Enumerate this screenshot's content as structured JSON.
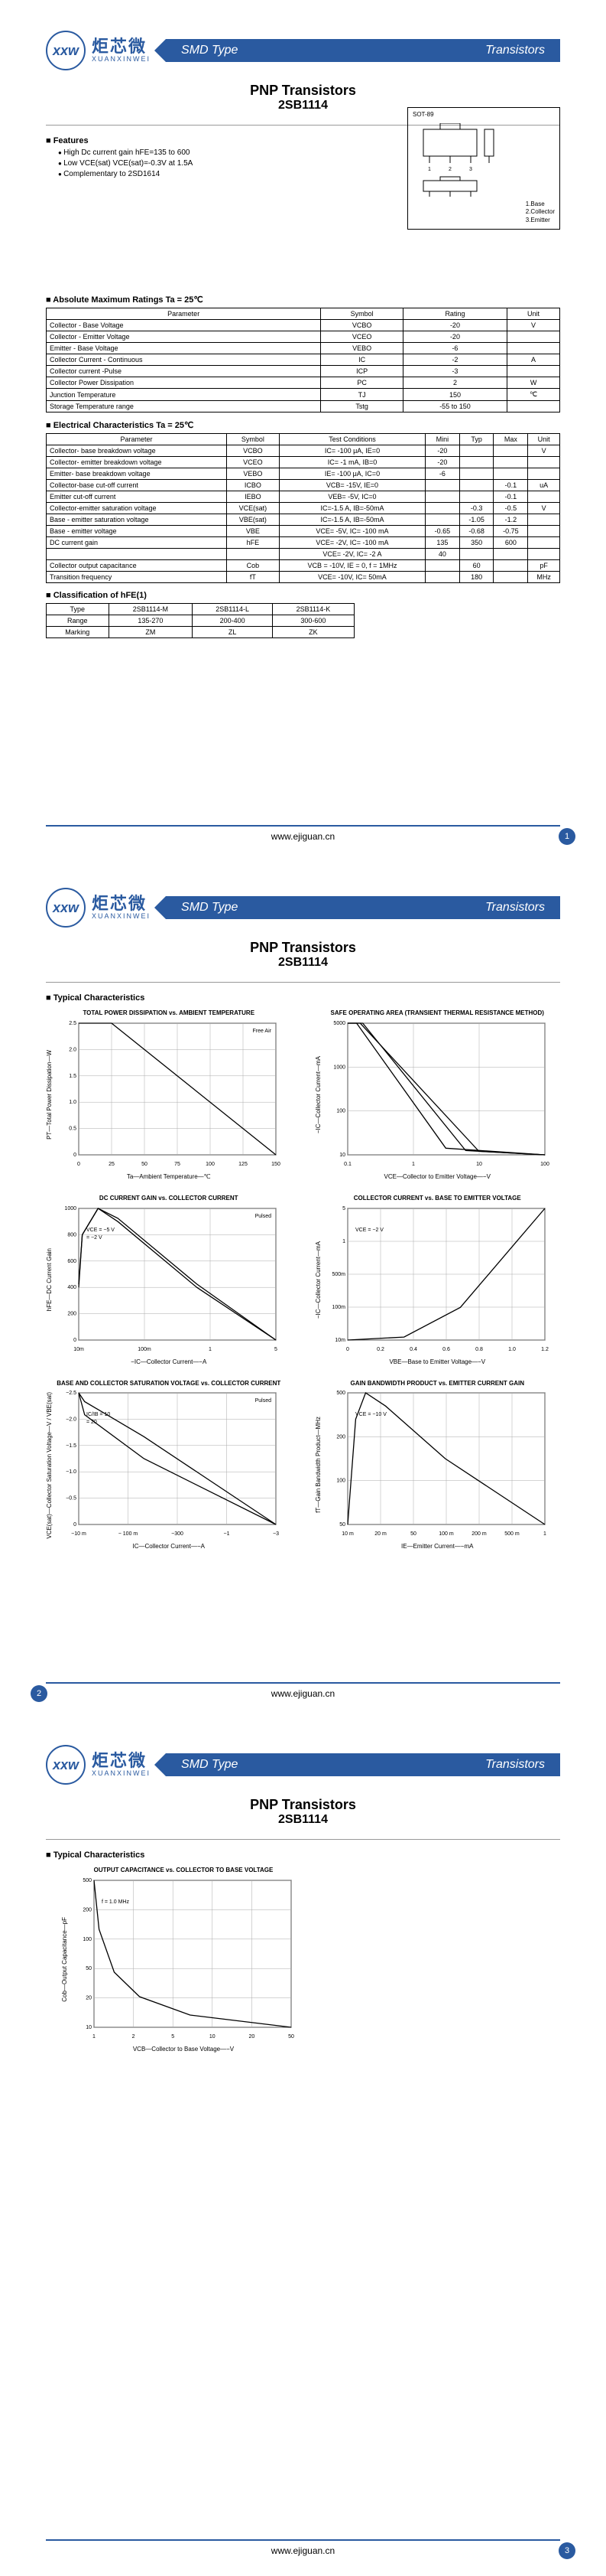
{
  "brand": {
    "logo_text": "xxw",
    "cn": "炬芯微",
    "en": "XUANXINWEI"
  },
  "banner": {
    "left": "SMD Type",
    "right": "Transistors"
  },
  "title": {
    "line1": "PNP  Transistors",
    "line2": "2SB1114"
  },
  "features": {
    "heading": "Features",
    "items": [
      "High Dc current gain hFE=135 to 600",
      "Low VCE(sat) VCE(sat)=-0.3V at 1.5A",
      "Complementary to 2SD1614"
    ]
  },
  "package": {
    "code": "SOT-89",
    "pins": [
      "1.Base",
      "2.Collector",
      "3.Emitter"
    ]
  },
  "abs_max": {
    "heading": "Absolute Maximum Ratings Ta = 25℃",
    "cols": [
      "Parameter",
      "Symbol",
      "Rating",
      "Unit"
    ],
    "rows": [
      [
        "Collector - Base Voltage",
        "VCBO",
        "-20",
        "V"
      ],
      [
        "Collector - Emitter Voltage",
        "VCEO",
        "-20",
        ""
      ],
      [
        "Emitter - Base Voltage",
        "VEBO",
        "-6",
        ""
      ],
      [
        "Collector Current - Continuous",
        "IC",
        "-2",
        "A"
      ],
      [
        "Collector current -Pulse",
        "ICP",
        "-3",
        ""
      ],
      [
        "Collector Power Dissipation",
        "PC",
        "2",
        "W"
      ],
      [
        "Junction Temperature",
        "TJ",
        "150",
        "℃"
      ],
      [
        "Storage Temperature range",
        "Tstg",
        "-55 to 150",
        ""
      ]
    ]
  },
  "elec": {
    "heading": "Electrical Characteristics Ta = 25℃",
    "cols": [
      "Parameter",
      "Symbol",
      "Test Conditions",
      "Mini",
      "Typ",
      "Max",
      "Unit"
    ],
    "rows": [
      [
        "Collector- base breakdown voltage",
        "VCBO",
        "IC= -100 μA,  IE=0",
        "-20",
        "",
        "",
        "V"
      ],
      [
        "Collector- emitter breakdown voltage",
        "VCEO",
        "IC= -1 mA,  IB=0",
        "-20",
        "",
        "",
        ""
      ],
      [
        "Emitter- base breakdown voltage",
        "VEBO",
        "IE= -100 μA,  IC=0",
        "-6",
        "",
        "",
        ""
      ],
      [
        "Collector-base cut-off current",
        "ICBO",
        "VCB= -15V,  IE=0",
        "",
        "",
        "-0.1",
        "uA"
      ],
      [
        "Emitter cut-off current",
        "IEBO",
        "VEB= -5V,  IC=0",
        "",
        "",
        "-0.1",
        ""
      ],
      [
        "Collector-emitter saturation voltage",
        "VCE(sat)",
        "IC=-1.5 A, IB=-50mA",
        "",
        "-0.3",
        "-0.5",
        "V"
      ],
      [
        "Base - emitter saturation voltage",
        "VBE(sat)",
        "IC=-1.5 A, IB=-50mA",
        "",
        "-1.05",
        "-1.2",
        ""
      ],
      [
        "Base - emitter  voltage",
        "VBE",
        "VCE= -5V, IC= -100 mA",
        "-0.65",
        "-0.68",
        "-0.75",
        ""
      ],
      [
        "DC current gain",
        "hFE",
        "VCE= -2V, IC= -100 mA",
        "135",
        "350",
        "600",
        ""
      ],
      [
        "",
        "",
        "VCE= -2V, IC= -2 A",
        "40",
        "",
        "",
        ""
      ],
      [
        "Collector output capacitance",
        "Cob",
        "VCB = -10V, IE = 0, f = 1MHz",
        "",
        "60",
        "",
        "pF"
      ],
      [
        "Transition frequency",
        "fT",
        "VCE= -10V, IC=  50mA",
        "",
        "180",
        "",
        "MHz"
      ]
    ]
  },
  "hfe": {
    "heading": "Classification of hFE(1)",
    "cols": [
      "Type",
      "2SB1114-M",
      "2SB1114-L",
      "2SB1114-K"
    ],
    "rows": [
      [
        "Range",
        "135-270",
        "200-400",
        "300-600"
      ],
      [
        "Marking",
        "ZM",
        "ZL",
        "ZK"
      ]
    ]
  },
  "typical_heading": "Typical  Characteristics",
  "charts": [
    {
      "title": "TOTAL POWER DISSIPATION vs. AMBIENT TEMPERATURE",
      "ylabel": "PT—Total Power Dissipation—W",
      "xlabel": "Ta—Ambient  Temperature—℃",
      "note": "Free Air",
      "type": "line",
      "xticks": [
        "0",
        "25",
        "50",
        "75",
        "100",
        "125",
        "150"
      ],
      "yticks": [
        "0",
        "0.5",
        "1.0",
        "1.5",
        "2.0",
        "2.5"
      ],
      "lines": [
        [
          [
            0,
            2.0
          ],
          [
            25,
            2.0
          ],
          [
            150,
            0
          ]
        ]
      ]
    },
    {
      "title": "SAFE OPERATING AREA (TRANSIENT THERMAL RESISTANCE METHOD)",
      "ylabel": "−IC—Collector Current—mA",
      "xlabel": "VCE—Collector to Emitter Voltage—−V",
      "type": "loglog",
      "xticks": [
        "0.1",
        "1",
        "10",
        "100"
      ],
      "yticks": [
        "10",
        "100",
        "1000",
        "5000"
      ],
      "lines": [
        [
          [
            0.1,
            3000
          ],
          [
            2,
            3000
          ],
          [
            20,
            100
          ],
          [
            30,
            20
          ]
        ],
        [
          [
            0.1,
            2000
          ],
          [
            2,
            2000
          ],
          [
            15,
            80
          ],
          [
            25,
            15
          ]
        ],
        [
          [
            0.1,
            1000
          ],
          [
            1,
            1000
          ],
          [
            10,
            60
          ],
          [
            20,
            10
          ]
        ]
      ]
    },
    {
      "title": "DC CURRENT GAIN vs. COLLECTOR CURRENT",
      "ylabel": "hFE—DC Current Gain",
      "xlabel": "−IC—Collector Current—−A",
      "note": "Pulsed",
      "type": "semilogx",
      "xticks": [
        "10m",
        "100m",
        "1",
        "5"
      ],
      "yticks": [
        "0",
        "200",
        "400",
        "600",
        "800",
        "1000"
      ],
      "lines": [
        [
          [
            0.01,
            300
          ],
          [
            0.1,
            500
          ],
          [
            0.5,
            600
          ],
          [
            1,
            550
          ],
          [
            3,
            300
          ],
          [
            5,
            100
          ]
        ],
        [
          [
            0.01,
            250
          ],
          [
            0.1,
            400
          ],
          [
            0.5,
            480
          ],
          [
            1,
            450
          ],
          [
            3,
            250
          ],
          [
            5,
            80
          ]
        ]
      ],
      "annot": [
        "VCE = −5 V",
        "= −2 V"
      ]
    },
    {
      "title": "COLLECTOR CURRENT vs. BASE TO EMITTER VOLTAGE",
      "ylabel": "−IC—Collector Current—mA",
      "xlabel": "VBE—Base to Emitter Voltage—−V",
      "type": "line",
      "xticks": [
        "0",
        "0.2",
        "0.4",
        "0.6",
        "0.8",
        "1.0",
        "1.2"
      ],
      "yticks": [
        "10m",
        "100m",
        "500m",
        "1",
        "5"
      ],
      "annot": [
        "VCE = −2 V"
      ],
      "lines": [
        [
          [
            0.4,
            0.01
          ],
          [
            0.6,
            0.1
          ],
          [
            0.8,
            1
          ],
          [
            1.0,
            3
          ],
          [
            1.1,
            4
          ]
        ]
      ]
    },
    {
      "title": "BASE AND COLLECTOR SATURATION VOLTAGE vs. COLLECTOR CURRENT",
      "ylabel": "VCE(sat)—Collector Saturation Voltage—V / VBE(sat)",
      "xlabel": "IC—Collector Current—−A",
      "note": "Pulsed",
      "type": "semilogx",
      "xticks": [
        "−10 m",
        "− 100 m",
        "−300",
        "−1",
        "−3"
      ],
      "yticks": [
        "0",
        "−0.5",
        "−1.0",
        "−1.5",
        "−2.0",
        "−2.5"
      ],
      "annot": [
        "IC/IB = 10",
        "= 20"
      ],
      "lines": [
        [
          [
            0.01,
            -0.05
          ],
          [
            0.1,
            -0.08
          ],
          [
            1,
            -0.2
          ],
          [
            3,
            -0.5
          ]
        ],
        [
          [
            0.01,
            -0.7
          ],
          [
            0.1,
            -0.8
          ],
          [
            1,
            -1.0
          ],
          [
            3,
            -1.3
          ]
        ]
      ]
    },
    {
      "title": "GAIN BANDWIDTH PRODUCT vs. EMITTER CURRENT GAIN",
      "ylabel": "fT—Gain Bandwidth Product—MHz",
      "xlabel": "IE—Emitter Current—−mA",
      "type": "semilogx",
      "xticks": [
        "10 m",
        "20 m",
        "50",
        "100 m",
        "200 m",
        "500 m",
        "1"
      ],
      "yticks": [
        "50",
        "100",
        "200",
        "500"
      ],
      "annot": [
        "VCE = −10 V"
      ],
      "lines": [
        [
          [
            10,
            100
          ],
          [
            50,
            180
          ],
          [
            100,
            200
          ],
          [
            200,
            190
          ],
          [
            500,
            150
          ],
          [
            1000,
            100
          ]
        ]
      ]
    }
  ],
  "chart_p3": {
    "title": "OUTPUT CAPACITANCE vs. COLLECTOR TO BASE VOLTAGE",
    "ylabel": "Cob—Output Capacitance—pF",
    "xlabel": "VCB—Collector to Base Voltage—−V",
    "type": "semilogx",
    "xticks": [
      "1",
      "2",
      "5",
      "10",
      "20",
      "50"
    ],
    "yticks": [
      "10",
      "20",
      "50",
      "100",
      "200",
      "500"
    ],
    "annot": [
      "f = 1.0 MHz"
    ],
    "lines": [
      [
        [
          1,
          150
        ],
        [
          2,
          110
        ],
        [
          5,
          75
        ],
        [
          10,
          55
        ],
        [
          20,
          40
        ],
        [
          40,
          30
        ]
      ]
    ]
  },
  "footer_url": "www.ejiguan.cn",
  "colors": {
    "brand": "#2a5aa0",
    "grid": "#888",
    "line": "#000"
  }
}
